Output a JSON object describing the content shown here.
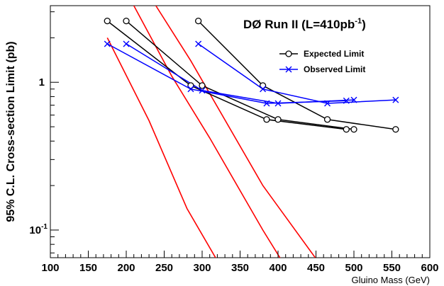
{
  "chart_data": {
    "type": "line",
    "title": "DØ Run II (L=410pb",
    "title_sup": "-1",
    "title_end": ")",
    "xlabel": "Gluino Mass (GeV)",
    "ylabel": "95% C.L. Cross-section Limit (pb)",
    "xlim": [
      100,
      600
    ],
    "ylim": [
      0.065,
      3.3
    ],
    "yscale": "log",
    "grid": false,
    "legend_position": "top-right",
    "x_ticks": [
      100,
      150,
      200,
      250,
      300,
      350,
      400,
      450,
      500,
      550,
      600
    ],
    "x_tick_labels": [
      "100",
      "150",
      "200",
      "250",
      "300",
      "350",
      "400",
      "450",
      "500",
      "550",
      "600"
    ],
    "y_ticks": [
      {
        "value": 1,
        "label": "1",
        "sup": ""
      },
      {
        "value": 0.1,
        "label": "10",
        "sup": "-1"
      }
    ],
    "series": [
      {
        "name": "Expected Limit",
        "legend": true,
        "color": "#000000",
        "marker": "circle",
        "points": [
          [
            175,
            2.6
          ],
          [
            285,
            0.95
          ],
          [
            385,
            0.56
          ],
          [
            490,
            0.48
          ]
        ]
      },
      {
        "name": "",
        "legend": false,
        "color": "#000000",
        "marker": "circle",
        "points": [
          [
            200,
            2.6
          ],
          [
            300,
            0.95
          ],
          [
            400,
            0.56
          ],
          [
            500,
            0.48
          ]
        ]
      },
      {
        "name": "",
        "legend": false,
        "color": "#000000",
        "marker": "circle",
        "points": [
          [
            295,
            2.6
          ],
          [
            380,
            0.95
          ],
          [
            465,
            0.56
          ],
          [
            555,
            0.48
          ]
        ]
      },
      {
        "name": "Observed Limit",
        "legend": true,
        "color": "#0000ff",
        "marker": "x",
        "points": [
          [
            175,
            1.82
          ],
          [
            285,
            0.9
          ],
          [
            385,
            0.72
          ],
          [
            490,
            0.75
          ]
        ]
      },
      {
        "name": "",
        "legend": false,
        "color": "#0000ff",
        "marker": "x",
        "points": [
          [
            200,
            1.82
          ],
          [
            300,
            0.88
          ],
          [
            400,
            0.72
          ],
          [
            500,
            0.76
          ]
        ]
      },
      {
        "name": "",
        "legend": false,
        "color": "#0000ff",
        "marker": "x",
        "points": [
          [
            295,
            1.82
          ],
          [
            380,
            0.9
          ],
          [
            465,
            0.72
          ],
          [
            555,
            0.76
          ]
        ]
      },
      {
        "name": "",
        "legend": false,
        "color": "#ff0000",
        "marker": "none",
        "points": [
          [
            175,
            2.0
          ],
          [
            230,
            0.55
          ],
          [
            280,
            0.14
          ],
          [
            320,
            0.062
          ]
        ]
      },
      {
        "name": "",
        "legend": false,
        "color": "#ff0000",
        "marker": "none",
        "points": [
          [
            210,
            3.3
          ],
          [
            260,
            1.1
          ],
          [
            310,
            0.42
          ],
          [
            380,
            0.1
          ],
          [
            405,
            0.062
          ]
        ]
      },
      {
        "name": "",
        "legend": false,
        "color": "#ff0000",
        "marker": "none",
        "points": [
          [
            239,
            3.3
          ],
          [
            285,
            1.4
          ],
          [
            380,
            0.2
          ],
          [
            452,
            0.062
          ]
        ]
      }
    ]
  }
}
